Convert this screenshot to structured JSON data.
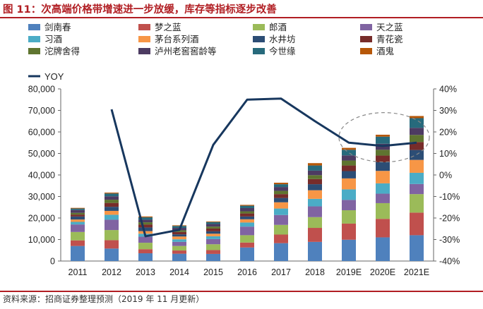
{
  "header": {
    "title": "图 11：次高端价格带增速进一步放缓，库存等指标逐步改善"
  },
  "footer": {
    "source": "资料来源：招商证券整理预测（2019 年 11 月更新）"
  },
  "chart_data": {
    "type": "bar",
    "stacked": true,
    "title": "",
    "xlabel": "",
    "ylabel": "",
    "categories": [
      "2011",
      "2012",
      "2013",
      "2014",
      "2015",
      "2016",
      "2017",
      "2018",
      "2019E",
      "2020E",
      "2021E"
    ],
    "ylim": [
      0,
      80000
    ],
    "y_ticks": [
      "0",
      "10,000",
      "20,000",
      "30,000",
      "40,000",
      "50,000",
      "60,000",
      "70,000",
      "80,000"
    ],
    "y2lim": [
      -40,
      40
    ],
    "y2_ticks": [
      "-40%",
      "-30%",
      "-20%",
      "-10%",
      "0%",
      "10%",
      "20%",
      "30%",
      "40%"
    ],
    "legend_position": "top",
    "grid": false,
    "series": [
      {
        "name": "剑南春",
        "color": "#4f81bd",
        "values": [
          7000,
          5800,
          3600,
          3400,
          3300,
          6300,
          8300,
          8900,
          9900,
          11000,
          12000
        ]
      },
      {
        "name": "梦之蓝",
        "color": "#c0504d",
        "values": [
          2600,
          3900,
          1900,
          1500,
          1800,
          2300,
          4000,
          6500,
          7500,
          8600,
          10500
        ]
      },
      {
        "name": "郎酒",
        "color": "#9bbb59",
        "values": [
          3900,
          4700,
          3000,
          2100,
          2700,
          3400,
          4500,
          5000,
          6200,
          7300,
          8600
        ]
      },
      {
        "name": "天之蓝",
        "color": "#8064a2",
        "values": [
          3500,
          4800,
          2800,
          1900,
          2400,
          4000,
          4600,
          5000,
          4800,
          4400,
          4700
        ]
      },
      {
        "name": "习酒",
        "color": "#4bacc6",
        "values": [
          1200,
          2300,
          1400,
          1200,
          1300,
          1900,
          3000,
          3500,
          4900,
          4800,
          5200
        ]
      },
      {
        "name": "茅台系列酒",
        "color": "#f79646",
        "values": [
          1100,
          1800,
          1200,
          1300,
          1200,
          1500,
          2900,
          4000,
          5100,
          5800,
          6000
        ]
      },
      {
        "name": "水井坊",
        "color": "#2c4d75",
        "values": [
          1400,
          1900,
          1700,
          1000,
          1100,
          1300,
          2000,
          2800,
          3400,
          4000,
          4600
        ]
      },
      {
        "name": "青花瓷",
        "color": "#772c2a",
        "values": [
          900,
          1800,
          1400,
          1100,
          1300,
          1400,
          1800,
          2400,
          2600,
          3100,
          3700
        ]
      },
      {
        "name": "沱牌舍得",
        "color": "#5f7530",
        "values": [
          800,
          1500,
          1000,
          800,
          900,
          1000,
          1500,
          1800,
          2300,
          2700,
          3300
        ]
      },
      {
        "name": "泸州老窖窖龄等",
        "color": "#4d3b62",
        "values": [
          1300,
          1600,
          1200,
          1100,
          1200,
          1500,
          1800,
          2100,
          2400,
          2800,
          3300
        ]
      },
      {
        "name": "今世缘",
        "color": "#276a7c",
        "values": [
          700,
          1300,
          1100,
          900,
          900,
          1100,
          1300,
          2400,
          2600,
          3300,
          4500
        ]
      },
      {
        "name": "酒鬼",
        "color": "#b65708",
        "values": [
          300,
          400,
          400,
          300,
          300,
          400,
          700,
          1100,
          900,
          900,
          1000
        ]
      }
    ],
    "line_series": {
      "name": "YOY",
      "color": "#17375e",
      "axis": "right",
      "values": [
        null,
        30.5,
        -28.5,
        -25.5,
        14,
        35,
        35.5,
        25,
        15,
        13.5,
        15
      ]
    },
    "annotation": "dashed ellipse around 2019E–2021E"
  }
}
